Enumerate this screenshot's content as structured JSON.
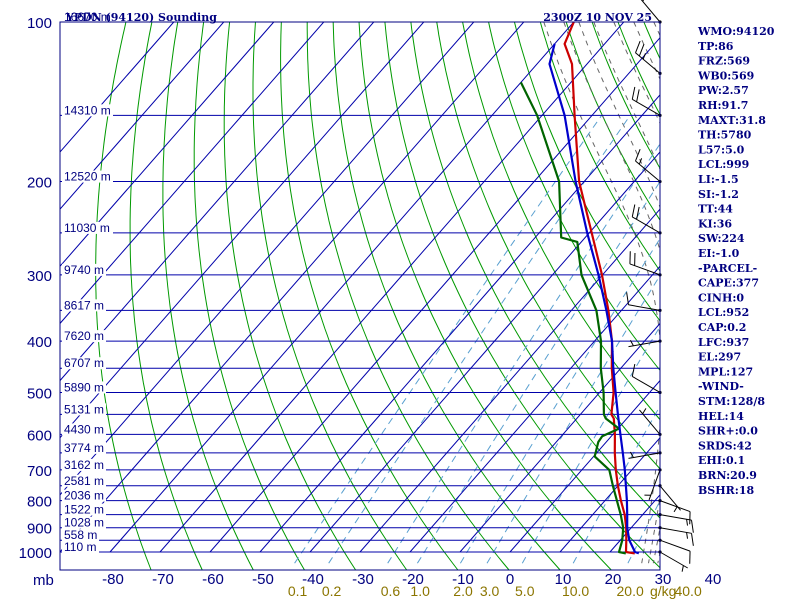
{
  "chart_data": {
    "type": "skew-t",
    "title": "YPDN (94120) Sounding",
    "valid_time": "2300Z 10 NOV 25",
    "pressure_unit": "mb",
    "pressure_range": [
      1000,
      100
    ],
    "pressure_labels": [
      "100",
      "200",
      "300",
      "400",
      "500",
      "600",
      "700",
      "800",
      "900",
      "1000"
    ],
    "temperature_unit": "C",
    "temperature_range": [
      -80,
      40
    ],
    "temperature_labels": [
      "-80",
      "-70",
      "-60",
      "-50",
      "-40",
      "-30",
      "-20",
      "-10",
      "0",
      "10",
      "20",
      "30",
      "40"
    ],
    "height_labels": [
      {
        "p": 100,
        "label": "16670 m"
      },
      {
        "p": 150,
        "label": "14310 m"
      },
      {
        "p": 200,
        "label": "12520 m"
      },
      {
        "p": 250,
        "label": "11030 m"
      },
      {
        "p": 300,
        "label": "9740 m"
      },
      {
        "p": 350,
        "label": "8617 m"
      },
      {
        "p": 400,
        "label": "7620 m"
      },
      {
        "p": 450,
        "label": "6707 m"
      },
      {
        "p": 500,
        "label": "5890 m"
      },
      {
        "p": 550,
        "label": "5131 m"
      },
      {
        "p": 600,
        "label": "4430 m"
      },
      {
        "p": 650,
        "label": "3774 m"
      },
      {
        "p": 700,
        "label": "3162 m"
      },
      {
        "p": 750,
        "label": "2581 m"
      },
      {
        "p": 800,
        "label": "2036 m"
      },
      {
        "p": 850,
        "label": "1522 m"
      },
      {
        "p": 900,
        "label": "1028 m"
      },
      {
        "p": 950,
        "label": "558 m"
      },
      {
        "p": 1000,
        "label": "110 m"
      }
    ],
    "mixing_ratio_unit": "g/kg",
    "mixing_ratio_labels": [
      "0.1",
      "0.2",
      "0.6",
      "1.0",
      "2.0",
      "3.0",
      "5.0",
      "10.0",
      "20.0",
      "40.0"
    ],
    "series": [
      {
        "name": "Temperature",
        "color": "#cc0000",
        "points": [
          {
            "p": 1006,
            "t": 25.2
          },
          {
            "p": 1000,
            "t": 23.2
          },
          {
            "p": 950,
            "t": 21.2
          },
          {
            "p": 900,
            "t": 19.0
          },
          {
            "p": 850,
            "t": 16.4
          },
          {
            "p": 800,
            "t": 13.2
          },
          {
            "p": 750,
            "t": 10.0
          },
          {
            "p": 700,
            "t": 6.8
          },
          {
            "p": 650,
            "t": 3.6
          },
          {
            "p": 600,
            "t": 0.4
          },
          {
            "p": 560,
            "t": -2.6
          },
          {
            "p": 550,
            "t": -3.8
          },
          {
            "p": 500,
            "t": -7.2
          },
          {
            "p": 450,
            "t": -11.8
          },
          {
            "p": 400,
            "t": -16.5
          },
          {
            "p": 350,
            "t": -22.6
          },
          {
            "p": 300,
            "t": -30.1
          },
          {
            "p": 250,
            "t": -39.5
          },
          {
            "p": 200,
            "t": -51.0
          },
          {
            "p": 150,
            "t": -63.5
          },
          {
            "p": 120,
            "t": -73.0
          },
          {
            "p": 110,
            "t": -78.0
          },
          {
            "p": 100,
            "t": -80.0
          }
        ]
      },
      {
        "name": "Dewpoint",
        "color": "#006400",
        "points": [
          {
            "p": 1006,
            "t": 23.4
          },
          {
            "p": 1000,
            "t": 21.8
          },
          {
            "p": 950,
            "t": 20.4
          },
          {
            "p": 900,
            "t": 18.4
          },
          {
            "p": 850,
            "t": 15.6
          },
          {
            "p": 800,
            "t": 12.4
          },
          {
            "p": 750,
            "t": 9.0
          },
          {
            "p": 700,
            "t": 5.5
          },
          {
            "p": 660,
            "t": 0.2
          },
          {
            "p": 620,
            "t": -1.6
          },
          {
            "p": 605,
            "t": -1.8
          },
          {
            "p": 585,
            "t": 0.2
          },
          {
            "p": 560,
            "t": -4.2
          },
          {
            "p": 550,
            "t": -5.3
          },
          {
            "p": 500,
            "t": -9.2
          },
          {
            "p": 450,
            "t": -14.0
          },
          {
            "p": 400,
            "t": -18.7
          },
          {
            "p": 350,
            "t": -25.0
          },
          {
            "p": 300,
            "t": -34.2
          },
          {
            "p": 260,
            "t": -40.8
          },
          {
            "p": 255,
            "t": -44.8
          },
          {
            "p": 200,
            "t": -55.0
          },
          {
            "p": 150,
            "t": -71.0
          },
          {
            "p": 130,
            "t": -80.0
          }
        ]
      },
      {
        "name": "Parcel",
        "color": "#0000cc",
        "points": [
          {
            "p": 1006,
            "t": 26.0
          },
          {
            "p": 1000,
            "t": 25.0
          },
          {
            "p": 950,
            "t": 21.8
          },
          {
            "p": 900,
            "t": 19.2
          },
          {
            "p": 850,
            "t": 16.9
          },
          {
            "p": 800,
            "t": 14.4
          },
          {
            "p": 750,
            "t": 11.6
          },
          {
            "p": 700,
            "t": 8.6
          },
          {
            "p": 650,
            "t": 5.2
          },
          {
            "p": 600,
            "t": 1.5
          },
          {
            "p": 550,
            "t": -2.5
          },
          {
            "p": 500,
            "t": -6.8
          },
          {
            "p": 450,
            "t": -11.5
          },
          {
            "p": 400,
            "t": -16.5
          },
          {
            "p": 350,
            "t": -23.0
          },
          {
            "p": 300,
            "t": -30.8
          },
          {
            "p": 250,
            "t": -40.4
          },
          {
            "p": 200,
            "t": -51.7
          },
          {
            "p": 150,
            "t": -65.5
          },
          {
            "p": 120,
            "t": -77.5
          },
          {
            "p": 110,
            "t": -80.0
          }
        ]
      }
    ],
    "indices": [
      "WMO:94120",
      "TP:86",
      "FRZ:569",
      "WB0:569",
      "PW:2.57",
      "RH:91.7",
      "MAXT:31.8",
      "TH:5780",
      "L57:5.0",
      "LCL:999",
      "LI:-1.5",
      "SI:-1.2",
      "TT:44",
      "KI:36",
      "SW:224",
      "EI:-1.0",
      "-PARCEL-",
      "CAPE:377",
      "CINH:0",
      "LCL:952",
      "CAP:0.2",
      "LFC:937",
      "EL:297",
      "MPL:127",
      "-WIND-",
      "STM:128/8",
      "HEL:14",
      "SHR+:0.0",
      "SRDS:42",
      "EHI:0.1",
      "BRN:20.9",
      "BSHR:18"
    ],
    "winds": [
      {
        "p": 1000,
        "dir": 120,
        "spd": 8
      },
      {
        "p": 950,
        "dir": 110,
        "spd": 10
      },
      {
        "p": 900,
        "dir": 100,
        "spd": 15
      },
      {
        "p": 850,
        "dir": 100,
        "spd": 15
      },
      {
        "p": 800,
        "dir": 110,
        "spd": 10
      },
      {
        "p": 750,
        "dir": 140,
        "spd": 5
      },
      {
        "p": 700,
        "dir": 200,
        "spd": 5
      },
      {
        "p": 650,
        "dir": 260,
        "spd": 5
      },
      {
        "p": 600,
        "dir": 320,
        "spd": 5
      },
      {
        "p": 500,
        "dir": 300,
        "spd": 10
      },
      {
        "p": 400,
        "dir": 260,
        "spd": 5
      },
      {
        "p": 350,
        "dir": 280,
        "spd": 10
      },
      {
        "p": 300,
        "dir": 290,
        "spd": 20
      },
      {
        "p": 250,
        "dir": 300,
        "spd": 20
      },
      {
        "p": 200,
        "dir": 310,
        "spd": 15
      },
      {
        "p": 150,
        "dir": 300,
        "spd": 20
      },
      {
        "p": 125,
        "dir": 310,
        "spd": 25
      },
      {
        "p": 100,
        "dir": 320,
        "spd": 15
      }
    ]
  },
  "colors": {
    "axis": "#000080",
    "isotherm": "#0000aa",
    "isobar": "#0000aa",
    "dry_adiabat": "#009900",
    "moist_adiabat": "#666666",
    "mixing_ratio": "#5aa0d0",
    "mixing_label": "#8b7500",
    "background": "#ffffff"
  }
}
